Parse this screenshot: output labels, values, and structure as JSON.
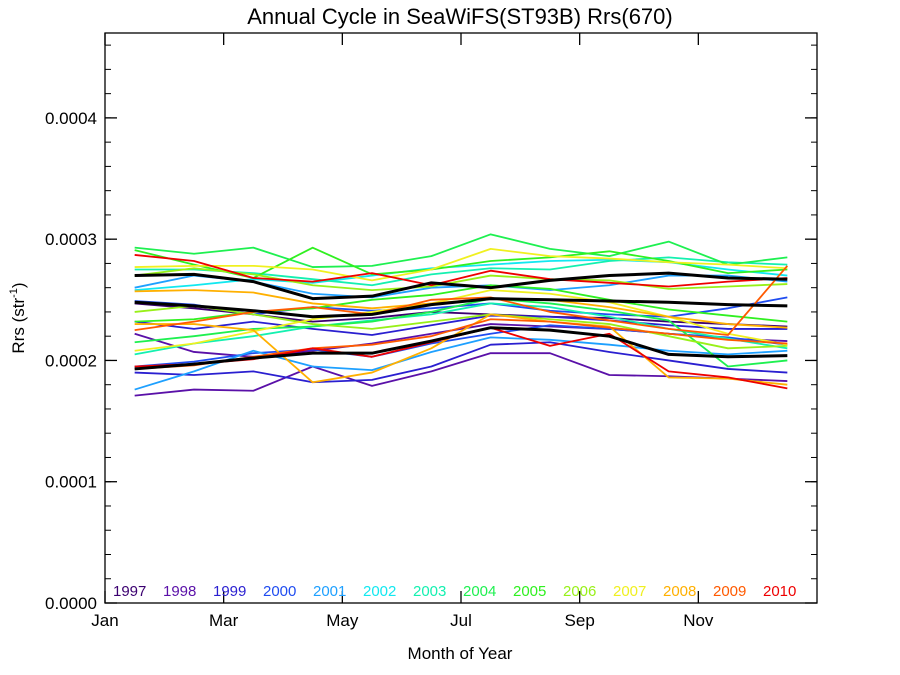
{
  "chart_data": {
    "type": "line",
    "title": "Annual Cycle in SeaWiFS(ST93B) Rrs(670)",
    "xlabel": "Month of Year",
    "ylabel": "Rrs (str",
    "ylabel_sup": "-1",
    "ylabel_close": ")",
    "xlim": [
      1,
      13
    ],
    "ylim": [
      0,
      0.00047
    ],
    "x_ticks": [
      {
        "x": 1,
        "label": "Jan"
      },
      {
        "x": 3,
        "label": "Mar"
      },
      {
        "x": 5,
        "label": "May"
      },
      {
        "x": 7,
        "label": "Jul"
      },
      {
        "x": 9,
        "label": "Sep"
      },
      {
        "x": 11,
        "label": "Nov"
      }
    ],
    "y_ticks": [
      {
        "y": 0,
        "label": "0.0000"
      },
      {
        "y": 0.0001,
        "label": "0.0001"
      },
      {
        "y": 0.0002,
        "label": "0.0002"
      },
      {
        "y": 0.0003,
        "label": "0.0003"
      },
      {
        "y": 0.0004,
        "label": "0.0004"
      }
    ],
    "legend": [
      {
        "label": "1997",
        "color": "#3b0070"
      },
      {
        "label": "1998",
        "color": "#5a10a8"
      },
      {
        "label": "1999",
        "color": "#2a1fd0"
      },
      {
        "label": "2000",
        "color": "#1f4cf0"
      },
      {
        "label": "2001",
        "color": "#1ea0ff"
      },
      {
        "label": "2002",
        "color": "#12e8f0"
      },
      {
        "label": "2003",
        "color": "#14f0b0"
      },
      {
        "label": "2004",
        "color": "#1ef050"
      },
      {
        "label": "2005",
        "color": "#30f020"
      },
      {
        "label": "2006",
        "color": "#98f018"
      },
      {
        "label": "2007",
        "color": "#f0f020"
      },
      {
        "label": "2008",
        "color": "#ffb000"
      },
      {
        "label": "2009",
        "color": "#ff5a00"
      },
      {
        "label": "2010",
        "color": "#ee0000"
      }
    ],
    "series": [
      {
        "color": "#3b0070",
        "values": [
          0.000247,
          0.000243,
          0.000238,
          0.000232,
          0.000235,
          0.00024,
          0.000238,
          0.000236,
          0.000235,
          0.000232,
          0.00023,
          0.000228
        ]
      },
      {
        "color": "#5a10a8",
        "values": [
          0.000171,
          0.000176,
          0.000175,
          0.000195,
          0.000179,
          0.000191,
          0.000206,
          0.000206,
          0.000188,
          0.000187,
          0.000185,
          0.000183
        ]
      },
      {
        "color": "#5a10a8",
        "values": [
          0.000222,
          0.000207,
          0.000203,
          0.000208,
          0.000214,
          0.000222,
          0.00023,
          0.000228,
          0.000226,
          0.000222,
          0.000218,
          0.000216
        ]
      },
      {
        "color": "#2a1fd0",
        "values": [
          0.00019,
          0.000188,
          0.000191,
          0.000182,
          0.000184,
          0.000195,
          0.000213,
          0.000215,
          0.000207,
          0.0002,
          0.000193,
          0.00019
        ]
      },
      {
        "color": "#2a1fd0",
        "values": [
          0.000232,
          0.000226,
          0.000232,
          0.000226,
          0.000221,
          0.000229,
          0.000237,
          0.000236,
          0.000233,
          0.000229,
          0.000226,
          0.000226
        ]
      },
      {
        "color": "#1f4cf0",
        "values": [
          0.000249,
          0.000246,
          0.000238,
          0.000244,
          0.000241,
          0.000243,
          0.000247,
          0.000241,
          0.000238,
          0.000236,
          0.000243,
          0.000252
        ]
      },
      {
        "color": "#1f4cf0",
        "values": [
          0.000195,
          0.000199,
          0.000206,
          0.000209,
          0.000203,
          0.000214,
          0.000222,
          0.000229,
          0.000226,
          0.000222,
          0.000219,
          0.000213
        ]
      },
      {
        "color": "#1ea0ff",
        "values": [
          0.000176,
          0.000191,
          0.000208,
          0.000195,
          0.000192,
          0.000207,
          0.000219,
          0.000217,
          0.000213,
          0.000208,
          0.000205,
          0.000208
        ]
      },
      {
        "color": "#1ea0ff",
        "values": [
          0.00026,
          0.00027,
          0.000265,
          0.000255,
          0.000252,
          0.00026,
          0.000262,
          0.000258,
          0.000262,
          0.00027,
          0.00027,
          0.000265
        ]
      },
      {
        "color": "#12e8f0",
        "values": [
          0.000258,
          0.000262,
          0.000267,
          0.000264,
          0.00027,
          0.000276,
          0.000279,
          0.000282,
          0.000283,
          0.000281,
          0.000275,
          0.00027
        ]
      },
      {
        "color": "#14f0b0",
        "values": [
          0.000275,
          0.000275,
          0.000272,
          0.000267,
          0.000262,
          0.000271,
          0.000276,
          0.000275,
          0.000282,
          0.000285,
          0.000281,
          0.000279
        ]
      },
      {
        "color": "#14f0b0",
        "values": [
          0.000205,
          0.000214,
          0.00022,
          0.000228,
          0.000233,
          0.000238,
          0.000247,
          0.000244,
          0.000236,
          0.000226,
          0.000218,
          0.00021
        ]
      },
      {
        "color": "#1ef050",
        "values": [
          0.000293,
          0.000288,
          0.000293,
          0.000277,
          0.000278,
          0.000286,
          0.000304,
          0.000292,
          0.000286,
          0.000298,
          0.000279,
          0.000285
        ]
      },
      {
        "color": "#1ef050",
        "values": [
          0.000215,
          0.00022,
          0.000226,
          0.000228,
          0.000232,
          0.00024,
          0.000251,
          0.000247,
          0.000241,
          0.000233,
          0.000195,
          0.0002
        ]
      },
      {
        "color": "#30f020",
        "values": [
          0.000291,
          0.000279,
          0.000268,
          0.000293,
          0.000271,
          0.000275,
          0.000282,
          0.000285,
          0.00029,
          0.000282,
          0.000272,
          0.000275
        ]
      },
      {
        "color": "#30f020",
        "values": [
          0.000232,
          0.000234,
          0.00024,
          0.000243,
          0.00025,
          0.000254,
          0.000262,
          0.000259,
          0.00025,
          0.000242,
          0.000237,
          0.000232
        ]
      },
      {
        "color": "#98f018",
        "values": [
          0.00027,
          0.000276,
          0.000271,
          0.000262,
          0.000258,
          0.000261,
          0.00027,
          0.000267,
          0.000266,
          0.000259,
          0.000261,
          0.000263
        ]
      },
      {
        "color": "#98f018",
        "values": [
          0.00024,
          0.000245,
          0.000238,
          0.00023,
          0.000226,
          0.000232,
          0.000238,
          0.000234,
          0.00023,
          0.00022,
          0.00021,
          0.000212
        ]
      },
      {
        "color": "#f0f020",
        "values": [
          0.000277,
          0.000278,
          0.000278,
          0.000275,
          0.000266,
          0.000275,
          0.000292,
          0.000286,
          0.000284,
          0.000281,
          0.000279,
          0.000276
        ]
      },
      {
        "color": "#f0f020",
        "values": [
          0.000208,
          0.000214,
          0.000224,
          0.000234,
          0.00024,
          0.000247,
          0.000258,
          0.000255,
          0.000248,
          0.000236,
          0.000222,
          0.000213
        ]
      },
      {
        "color": "#ffb000",
        "values": [
          0.00023,
          0.00023,
          0.000225,
          0.000182,
          0.00019,
          0.00021,
          0.000238,
          0.000232,
          0.000228,
          0.000186,
          0.000185,
          0.00018
        ]
      },
      {
        "color": "#ffb000",
        "values": [
          0.000257,
          0.000258,
          0.000256,
          0.000247,
          0.000243,
          0.000247,
          0.000251,
          0.00025,
          0.000244,
          0.000236,
          0.00023,
          0.000227
        ]
      },
      {
        "color": "#ff5a00",
        "values": [
          0.000225,
          0.000232,
          0.00024,
          0.000244,
          0.000238,
          0.00025,
          0.000252,
          0.00024,
          0.000233,
          0.000226,
          0.000221,
          0.000278
        ]
      },
      {
        "color": "#ff5a00",
        "values": [
          0.000193,
          0.000196,
          0.000203,
          0.00021,
          0.000213,
          0.00022,
          0.000234,
          0.000232,
          0.000227,
          0.000222,
          0.000217,
          0.000214
        ]
      },
      {
        "color": "#ee0000",
        "values": [
          0.000287,
          0.000282,
          0.000268,
          0.000265,
          0.000272,
          0.000262,
          0.000274,
          0.000267,
          0.000264,
          0.000261,
          0.000265,
          0.000268
        ]
      },
      {
        "color": "#ee0000",
        "values": [
          0.000195,
          0.000197,
          0.000201,
          0.00021,
          0.000203,
          0.000215,
          0.000227,
          0.000212,
          0.000222,
          0.000191,
          0.000186,
          0.000177
        ]
      },
      {
        "color": "#000000",
        "width": 3,
        "values": [
          0.00027,
          0.000271,
          0.000265,
          0.000251,
          0.000253,
          0.000264,
          0.00026,
          0.000266,
          0.00027,
          0.000272,
          0.000268,
          0.000267
        ]
      },
      {
        "color": "#000000",
        "width": 3,
        "values": [
          0.000248,
          0.000245,
          0.000241,
          0.000236,
          0.000238,
          0.000246,
          0.000251,
          0.00025,
          0.000249,
          0.000248,
          0.000246,
          0.000245
        ]
      },
      {
        "color": "#000000",
        "width": 3,
        "values": [
          0.000193,
          0.000197,
          0.000202,
          0.000206,
          0.000206,
          0.000216,
          0.000227,
          0.000225,
          0.00022,
          0.000205,
          0.000203,
          0.000204
        ]
      }
    ]
  }
}
